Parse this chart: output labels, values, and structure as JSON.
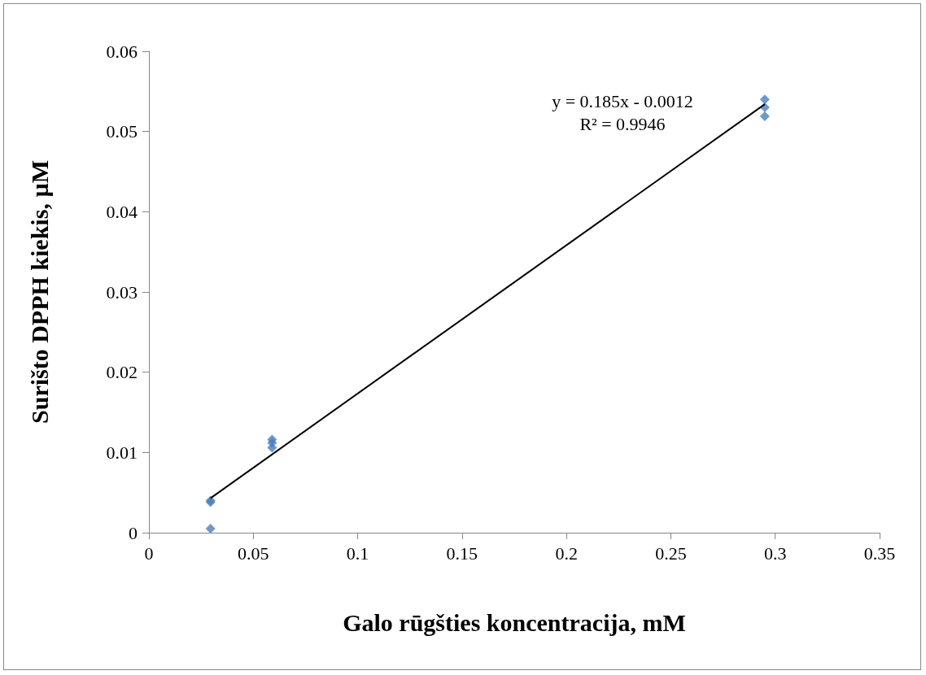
{
  "chart_data": {
    "type": "scatter",
    "xlabel": "Galo rūgšties koncentracija, mM",
    "ylabel": "Surišto DPPH kiekis, µM",
    "xlim": [
      0,
      0.35
    ],
    "xticks": [
      0,
      0.05,
      0.1,
      0.15,
      0.2,
      0.25,
      0.3,
      0.35
    ],
    "ylim": [
      0,
      0.06
    ],
    "yticks": [
      0,
      0.01,
      0.02,
      0.03,
      0.04,
      0.05,
      0.06
    ],
    "grid": false,
    "series": [
      {
        "marker": "diamond",
        "color": "#4a7ebb",
        "x": [
          0.0295,
          0.0295,
          0.0295,
          0.059,
          0.059,
          0.059,
          0.295,
          0.295,
          0.295
        ],
        "values": [
          0.004,
          0.0038,
          0.0005,
          0.0116,
          0.0112,
          0.0106,
          0.054,
          0.053,
          0.0519
        ]
      },
      {
        "type": "line",
        "marker": "none",
        "color": "#000000",
        "line_style": "solid",
        "x": [
          0.0295,
          0.295
        ],
        "values": [
          0.0043,
          0.0534
        ]
      }
    ],
    "annotations": [
      "y = 0.185x - 0.0012",
      "R² = 0.9946"
    ]
  }
}
